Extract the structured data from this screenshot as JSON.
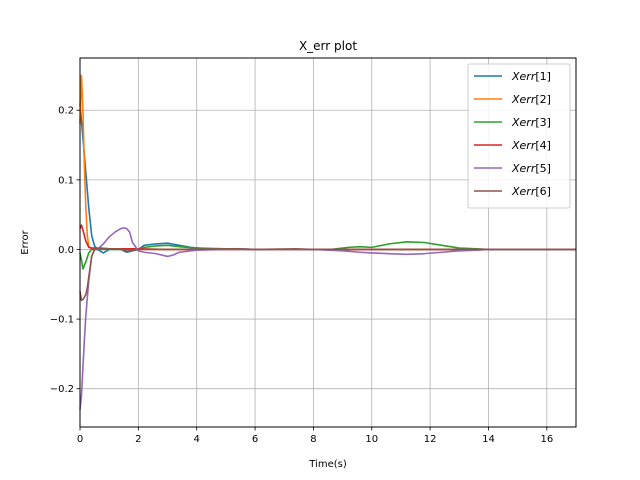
{
  "chart_data": {
    "type": "line",
    "title": "X_err plot",
    "xlabel": "Time(s)",
    "ylabel": "Error",
    "xlim": [
      0,
      17
    ],
    "ylim": [
      -0.255,
      0.275
    ],
    "xticks": [
      0,
      2,
      4,
      6,
      8,
      10,
      12,
      14,
      16
    ],
    "yticks": [
      -0.2,
      -0.1,
      0.0,
      0.1,
      0.2
    ],
    "grid": true,
    "legend_position": "top-right",
    "series": [
      {
        "name": "Xerr[1]",
        "legend_var": "Xerr",
        "legend_index": "[1]",
        "color": "#1f77b4",
        "points": [
          [
            0,
            0.21
          ],
          [
            0.1,
            0.16
          ],
          [
            0.2,
            0.11
          ],
          [
            0.3,
            0.06
          ],
          [
            0.4,
            0.02
          ],
          [
            0.5,
            0.005
          ],
          [
            0.6,
            0.0
          ],
          [
            0.8,
            -0.005
          ],
          [
            1.0,
            0.0
          ],
          [
            1.4,
            0.0
          ],
          [
            1.6,
            -0.004
          ],
          [
            1.8,
            -0.002
          ],
          [
            2.0,
            0.0
          ],
          [
            2.2,
            0.006
          ],
          [
            2.6,
            0.008
          ],
          [
            3.0,
            0.009
          ],
          [
            3.4,
            0.006
          ],
          [
            3.8,
            0.003
          ],
          [
            4.4,
            0.001
          ],
          [
            5.4,
            0.001
          ],
          [
            6,
            0
          ],
          [
            17,
            0
          ]
        ]
      },
      {
        "name": "Xerr[2]",
        "legend_var": "Xerr",
        "legend_index": "[2]",
        "color": "#ff7f0e",
        "points": [
          [
            0,
            0.18
          ],
          [
            0.05,
            0.25
          ],
          [
            0.1,
            0.2
          ],
          [
            0.15,
            0.12
          ],
          [
            0.2,
            0.06
          ],
          [
            0.25,
            0.02
          ],
          [
            0.3,
            0.005
          ],
          [
            0.4,
            0.0
          ],
          [
            0.6,
            0.001
          ],
          [
            1.0,
            0.001
          ],
          [
            1.6,
            0.0
          ],
          [
            2.0,
            0.0
          ],
          [
            3.0,
            0.0
          ],
          [
            17,
            0
          ]
        ]
      },
      {
        "name": "Xerr[3]",
        "legend_var": "Xerr",
        "legend_index": "[3]",
        "color": "#2ca02c",
        "points": [
          [
            0,
            -0.005
          ],
          [
            0.05,
            -0.015
          ],
          [
            0.1,
            -0.028
          ],
          [
            0.2,
            -0.018
          ],
          [
            0.3,
            -0.005
          ],
          [
            0.4,
            0.0
          ],
          [
            0.6,
            0.0
          ],
          [
            1.0,
            0.0
          ],
          [
            1.6,
            0.0
          ],
          [
            2.0,
            0.0
          ],
          [
            2.2,
            0.003
          ],
          [
            2.6,
            0.005
          ],
          [
            3.0,
            0.006
          ],
          [
            3.4,
            0.004
          ],
          [
            4.0,
            0.002
          ],
          [
            5.0,
            0.001
          ],
          [
            6.0,
            0.0
          ],
          [
            8.0,
            0.0
          ],
          [
            8.6,
            0.0
          ],
          [
            9.2,
            0.003
          ],
          [
            9.6,
            0.004
          ],
          [
            10.0,
            0.003
          ],
          [
            10.6,
            0.008
          ],
          [
            11.2,
            0.011
          ],
          [
            11.8,
            0.01
          ],
          [
            12.4,
            0.006
          ],
          [
            13.0,
            0.002
          ],
          [
            13.6,
            0.001
          ],
          [
            14.0,
            0.0
          ],
          [
            17,
            0
          ]
        ]
      },
      {
        "name": "Xerr[4]",
        "legend_var": "Xerr",
        "legend_index": "[4]",
        "color": "#d62728",
        "points": [
          [
            0,
            0.03
          ],
          [
            0.05,
            0.035
          ],
          [
            0.1,
            0.028
          ],
          [
            0.2,
            0.012
          ],
          [
            0.3,
            0.003
          ],
          [
            0.4,
            0.002
          ],
          [
            0.6,
            0.002
          ],
          [
            1.0,
            0.001
          ],
          [
            1.6,
            0.001
          ],
          [
            2.0,
            0.001
          ],
          [
            3.0,
            0.0
          ],
          [
            17,
            0
          ]
        ]
      },
      {
        "name": "Xerr[5]",
        "legend_var": "Xerr",
        "legend_index": "[5]",
        "color": "#9467bd",
        "points": [
          [
            0,
            -0.23
          ],
          [
            0.05,
            -0.21
          ],
          [
            0.1,
            -0.17
          ],
          [
            0.15,
            -0.13
          ],
          [
            0.2,
            -0.095
          ],
          [
            0.3,
            -0.045
          ],
          [
            0.4,
            -0.01
          ],
          [
            0.5,
            0.0
          ],
          [
            0.6,
            0.0
          ],
          [
            0.8,
            0.008
          ],
          [
            1.0,
            0.018
          ],
          [
            1.2,
            0.025
          ],
          [
            1.4,
            0.03
          ],
          [
            1.5,
            0.031
          ],
          [
            1.6,
            0.03
          ],
          [
            1.7,
            0.025
          ],
          [
            1.8,
            0.01
          ],
          [
            2.0,
            -0.002
          ],
          [
            2.2,
            -0.004
          ],
          [
            2.6,
            -0.006
          ],
          [
            3.0,
            -0.01
          ],
          [
            3.2,
            -0.008
          ],
          [
            3.4,
            -0.004
          ],
          [
            4.0,
            -0.001
          ],
          [
            5.0,
            0.0
          ],
          [
            7.0,
            0.0
          ],
          [
            8.0,
            0.0
          ],
          [
            9.0,
            -0.002
          ],
          [
            9.6,
            -0.004
          ],
          [
            10.0,
            -0.005
          ],
          [
            10.6,
            -0.006
          ],
          [
            11.2,
            -0.007
          ],
          [
            11.8,
            -0.006
          ],
          [
            12.4,
            -0.004
          ],
          [
            13.0,
            -0.002
          ],
          [
            13.6,
            -0.001
          ],
          [
            14.0,
            0.0
          ],
          [
            17,
            0
          ]
        ]
      },
      {
        "name": "Xerr[6]",
        "legend_var": "Xerr",
        "legend_index": "[6]",
        "color": "#8c564b",
        "points": [
          [
            0,
            -0.06
          ],
          [
            0.05,
            -0.073
          ],
          [
            0.1,
            -0.072
          ],
          [
            0.2,
            -0.065
          ],
          [
            0.25,
            -0.055
          ],
          [
            0.3,
            -0.04
          ],
          [
            0.4,
            -0.01
          ],
          [
            0.5,
            0.0
          ],
          [
            0.7,
            0.002
          ],
          [
            1.0,
            0.001
          ],
          [
            1.5,
            0.0
          ],
          [
            1.6,
            -0.003
          ],
          [
            1.8,
            -0.001
          ],
          [
            2.0,
            0.0
          ],
          [
            3.0,
            0.0
          ],
          [
            5.4,
            0.001
          ],
          [
            6.0,
            0.0
          ],
          [
            7.4,
            0.001
          ],
          [
            8.0,
            0.0
          ],
          [
            17,
            0
          ]
        ]
      }
    ]
  }
}
